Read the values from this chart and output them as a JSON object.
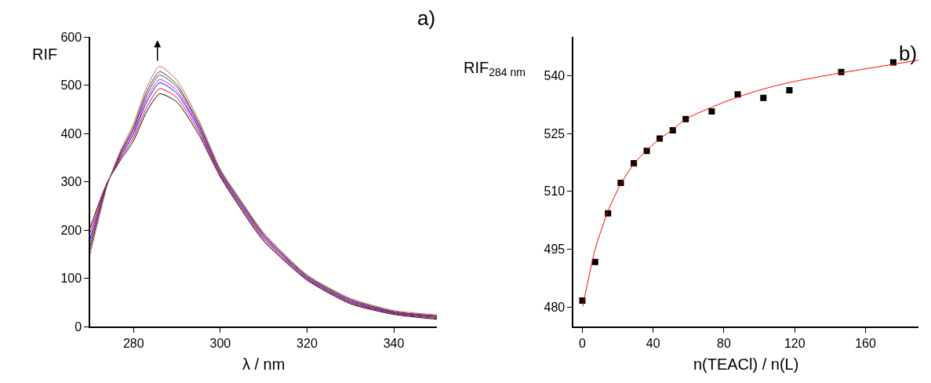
{
  "chart_data": [
    {
      "type": "line",
      "title": "a)",
      "xlabel": "λ / nm",
      "ylabel": "RIF",
      "xlim": [
        270,
        350
      ],
      "ylim": [
        0,
        600
      ],
      "xticks": [
        280,
        300,
        320,
        340
      ],
      "yticks": [
        0,
        100,
        200,
        300,
        400,
        500,
        600
      ],
      "marker": "none",
      "line_style": "solid",
      "x": [
        270,
        272,
        274,
        277,
        280,
        283,
        286,
        290,
        295,
        300,
        305,
        310,
        320,
        330,
        340,
        350
      ],
      "series": [
        {
          "color": "#000000",
          "values": [
            205,
            255,
            300,
            345,
            385,
            445,
            482,
            465,
            398,
            310,
            240,
            177,
            96,
            47,
            25,
            15
          ]
        },
        {
          "color": "#ff0000",
          "values": [
            195,
            249,
            299,
            349,
            392,
            454,
            493,
            474,
            404,
            313,
            243,
            180,
            98,
            49,
            27,
            17
          ]
        },
        {
          "color": "#0000ff",
          "values": [
            183,
            243,
            298,
            353,
            399,
            465,
            505,
            483,
            410,
            316,
            247,
            184,
            100,
            51,
            28,
            19
          ]
        },
        {
          "color": "#ff00ff",
          "values": [
            176,
            239,
            297,
            356,
            404,
            472,
            512,
            489,
            414,
            318,
            250,
            186,
            102,
            53,
            29,
            20
          ]
        },
        {
          "color": "#008000",
          "values": [
            168,
            235,
            297,
            359,
            409,
            479,
            521,
            496,
            418,
            321,
            252,
            189,
            103,
            54,
            30,
            21
          ]
        },
        {
          "color": "#800080",
          "values": [
            160,
            231,
            296,
            361,
            413,
            486,
            528,
            501,
            422,
            323,
            255,
            191,
            105,
            56,
            31,
            22
          ]
        },
        {
          "color": "#b07030",
          "values": [
            150,
            225,
            295,
            365,
            420,
            495,
            539,
            510,
            428,
            326,
            258,
            194,
            107,
            58,
            33,
            24
          ]
        }
      ]
    },
    {
      "type": "scatter",
      "title": "b)",
      "xlabel": "n(TEACl) / n(L)",
      "ylabel": "RIF$_{284 nm}$",
      "xlim": [
        -5,
        190
      ],
      "ylim": [
        475,
        550
      ],
      "xticks": [
        0,
        40,
        80,
        120,
        160
      ],
      "yticks": [
        480,
        495,
        510,
        525,
        540
      ],
      "series": [
        {
          "type": "scatter",
          "marker": "square",
          "color": "#000000",
          "x": [
            0,
            7.2,
            14.5,
            21.7,
            29.1,
            36.4,
            43.7,
            51.1,
            58.4,
            73.1,
            87.8,
            102.3,
            117.0,
            146.3,
            175.7
          ],
          "values": [
            481.7,
            491.7,
            504.3,
            512.2,
            517.3,
            520.5,
            523.7,
            525.8,
            528.7,
            530.7,
            535.1,
            534.2,
            536.2,
            540.9,
            543.4
          ]
        },
        {
          "type": "line",
          "color": "#ff0000",
          "x": [
            0.2,
            7.2,
            14.5,
            21.7,
            29.1,
            36.4,
            43.7,
            51.1,
            58.4,
            73.1,
            87.8,
            102.3,
            117.0,
            146.3,
            175.7,
            190
          ],
          "values": [
            480.2,
            495.0,
            504.9,
            511.9,
            517.1,
            520.7,
            523.6,
            526.0,
            528.7,
            531.8,
            534.4,
            536.5,
            538.2,
            540.7,
            542.9,
            544.0
          ]
        }
      ]
    }
  ]
}
